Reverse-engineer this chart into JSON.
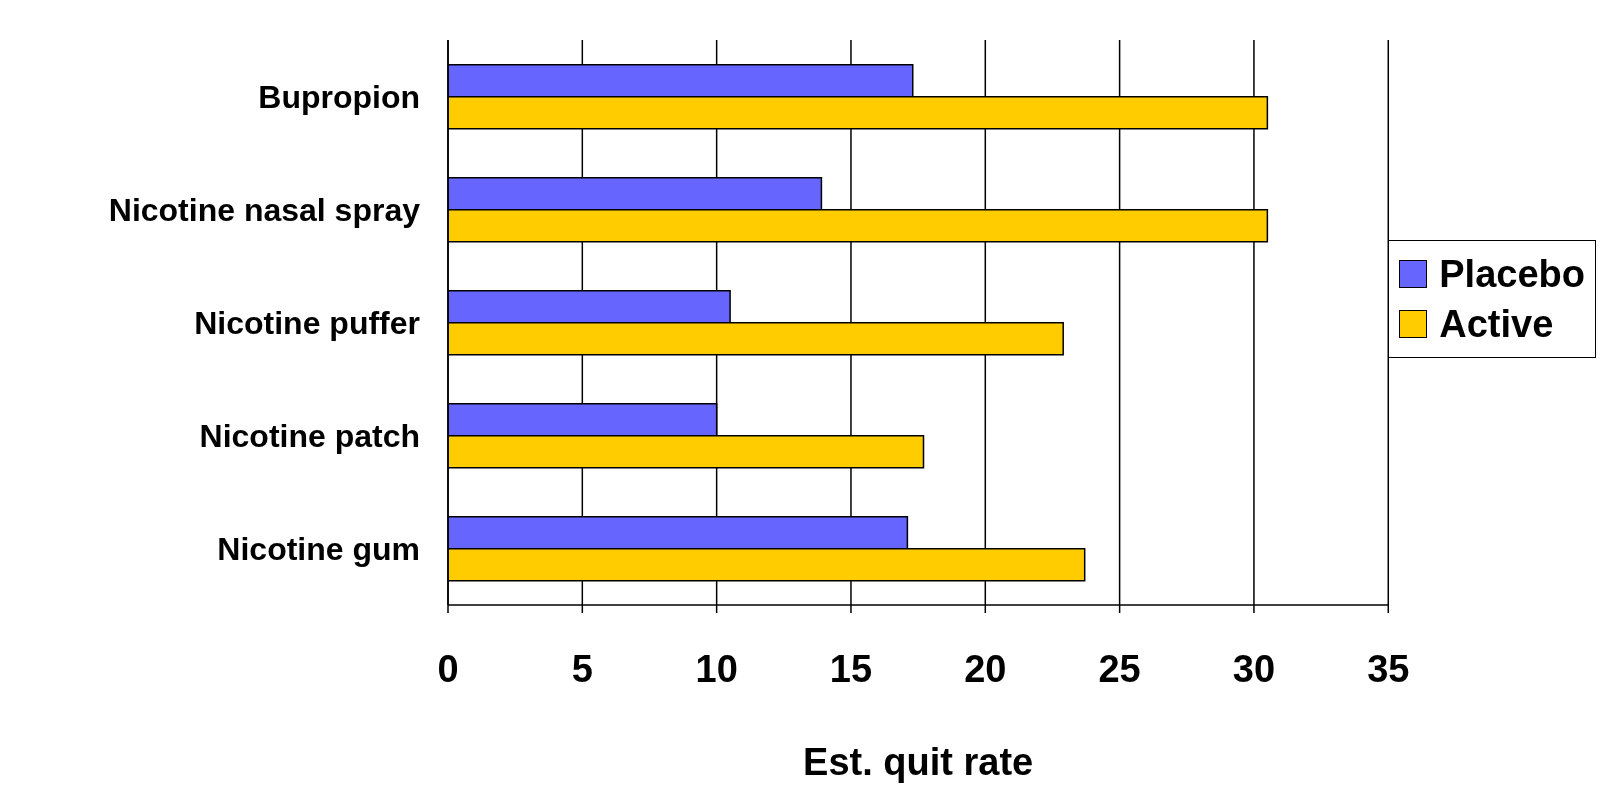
{
  "chart_data": {
    "type": "bar",
    "orientation": "horizontal",
    "xlabel": "Est. quit rate",
    "categories": [
      "Bupropion",
      "Nicotine nasal spray",
      "Nicotine puffer",
      "Nicotine patch",
      "Nicotine gum"
    ],
    "series": [
      {
        "name": "Placebo",
        "color": "#6666ff",
        "values": [
          17.3,
          13.9,
          10.5,
          10.0,
          17.1
        ]
      },
      {
        "name": "Active",
        "color": "#ffcc00",
        "values": [
          30.5,
          30.5,
          22.9,
          17.7,
          23.7
        ]
      }
    ],
    "xlim": [
      0,
      35
    ],
    "xticks": [
      0,
      5,
      10,
      15,
      20,
      25,
      30,
      35
    ],
    "grid": "x",
    "legend": "right"
  }
}
